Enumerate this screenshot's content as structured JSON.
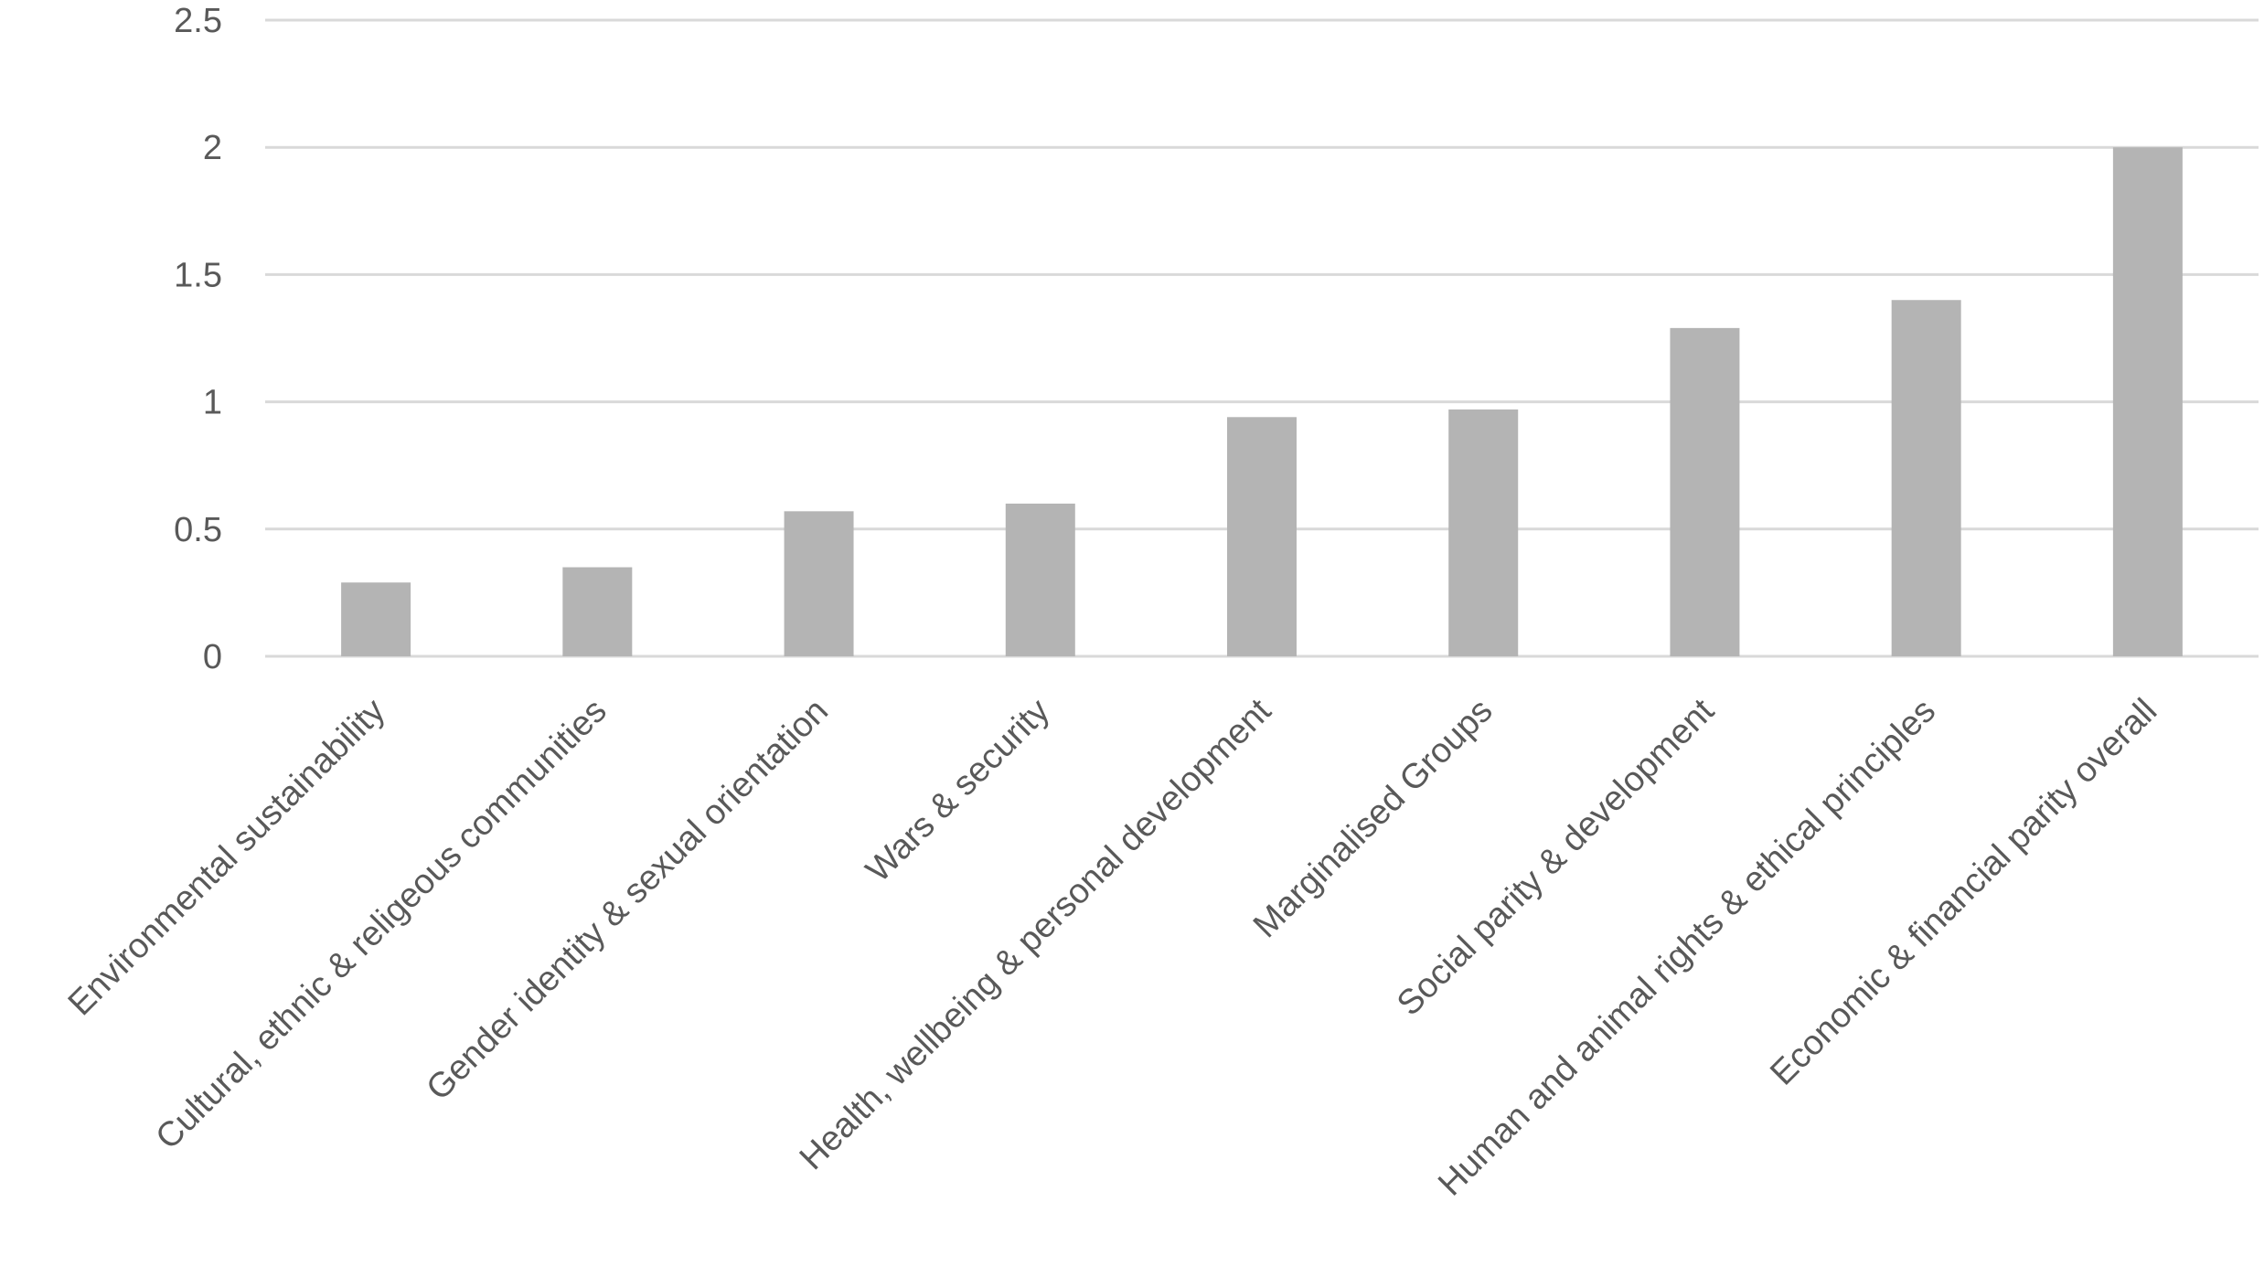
{
  "chart_data": {
    "type": "bar",
    "title": "",
    "xlabel": "",
    "ylabel": "",
    "ylim": [
      0,
      2.5
    ],
    "y_ticks": [
      "0",
      "0.5",
      "1",
      "1.5",
      "2",
      "2.5"
    ],
    "y_tick_values": [
      0,
      0.5,
      1,
      1.5,
      2,
      2.5
    ],
    "grid": true,
    "legend": "none",
    "bar_color": "#b4b4b4",
    "categories": [
      "Environmental sustainability",
      "Cultural, ethnic & religeous communities",
      "Gender identity & sexual orientation",
      "Wars & security",
      "Health, wellbeing & personal development",
      "Marginalised Groups",
      "Social parity & development",
      "Human and animal rights & ethical principles",
      "Economic & financial parity overall"
    ],
    "values": [
      0.29,
      0.35,
      0.57,
      0.6,
      0.94,
      0.97,
      1.29,
      1.4,
      2.0
    ]
  }
}
